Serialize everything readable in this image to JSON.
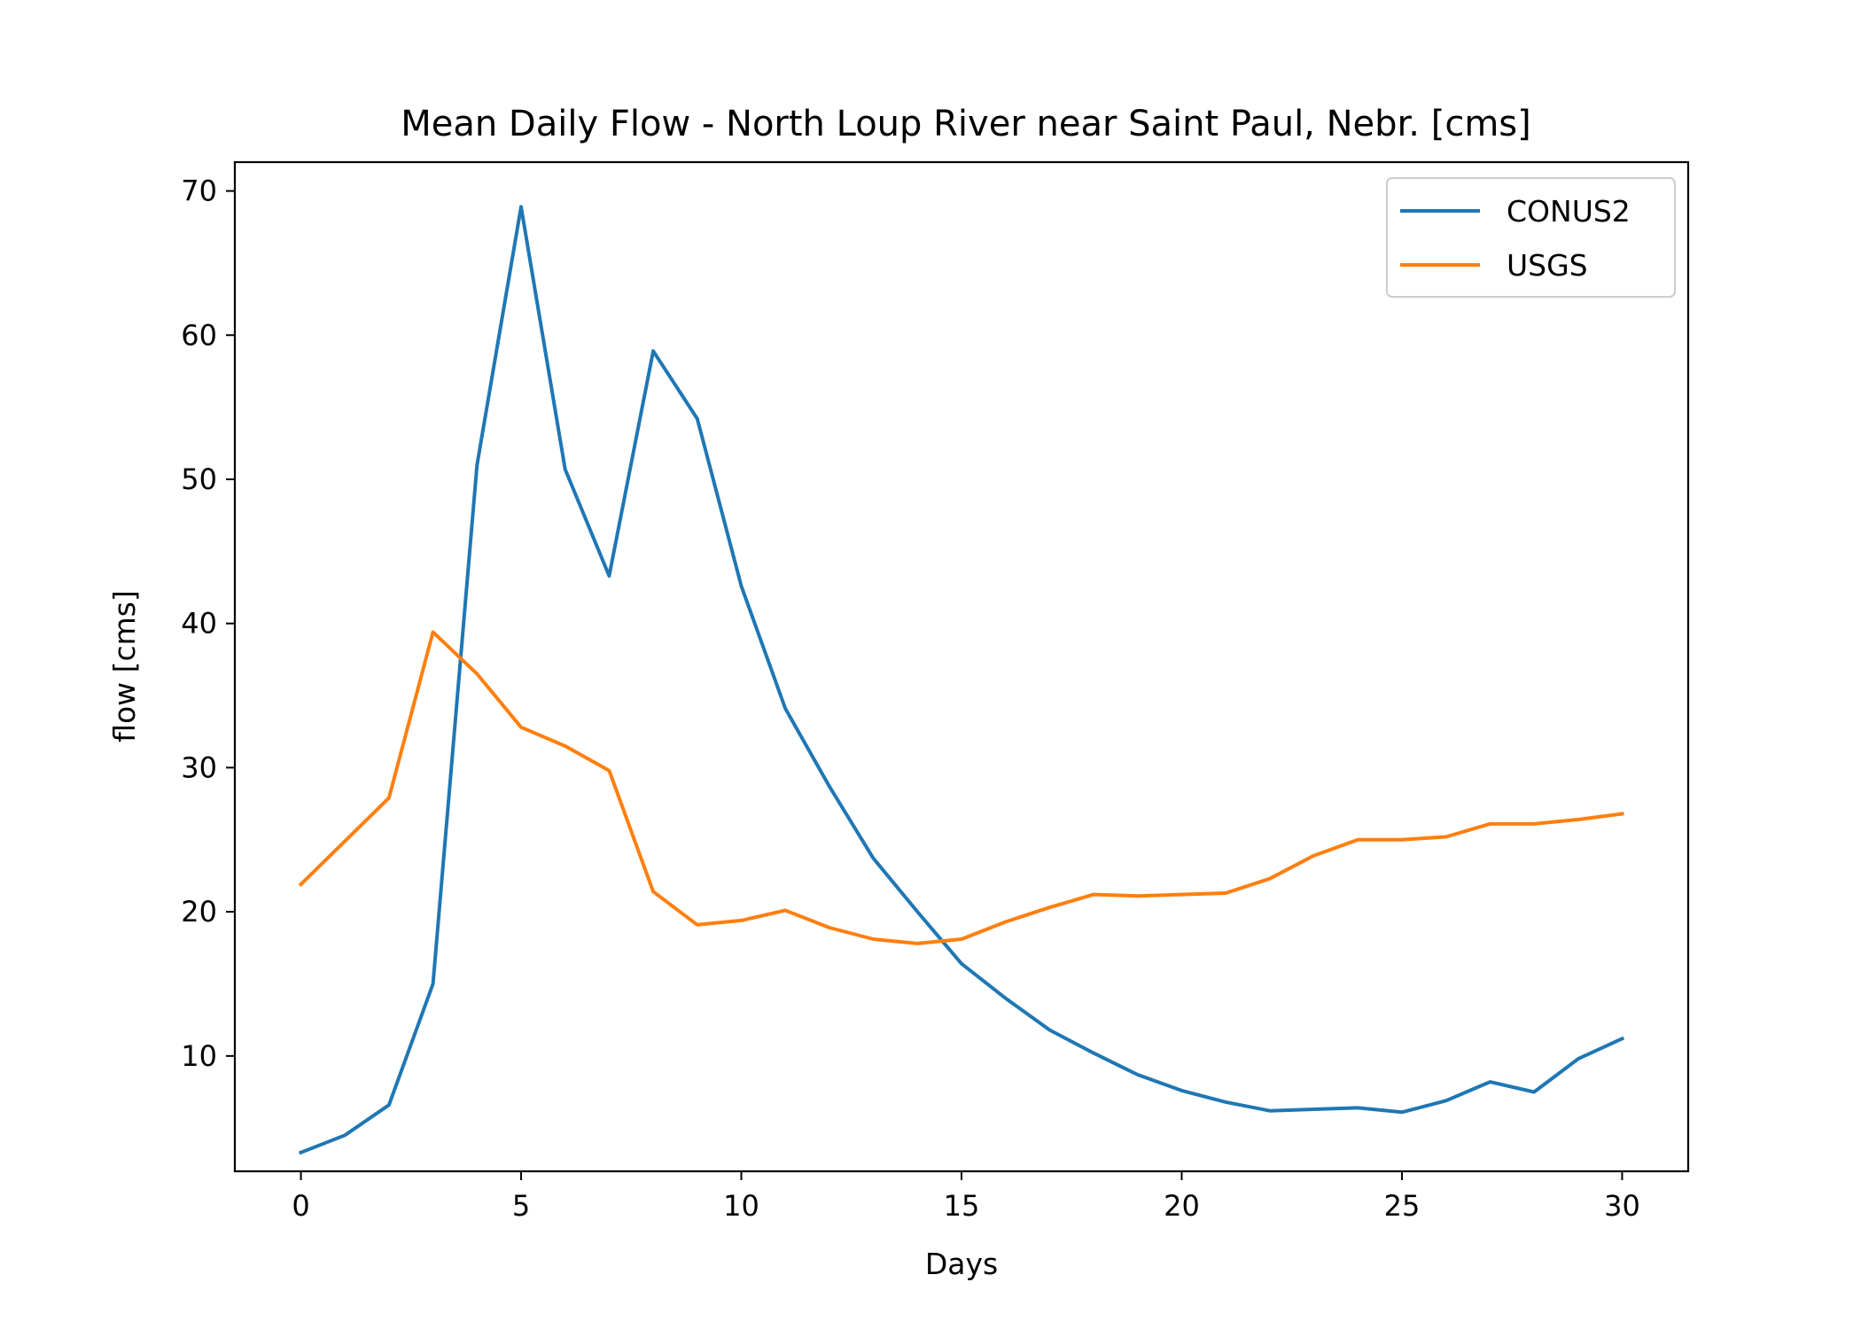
{
  "chart_data": {
    "type": "line",
    "title": "Mean Daily Flow - North Loup River near Saint Paul, Nebr. [cms]",
    "xlabel": "Days",
    "ylabel": "flow [cms]",
    "xlim": [
      -1.5,
      31.5
    ],
    "ylim": [
      2,
      72
    ],
    "xticks": [
      0,
      5,
      10,
      15,
      20,
      25,
      30
    ],
    "yticks": [
      10,
      20,
      30,
      40,
      50,
      60,
      70
    ],
    "grid": false,
    "legend_position": "top-right",
    "x": [
      0,
      1,
      2,
      3,
      4,
      5,
      6,
      7,
      8,
      9,
      10,
      11,
      12,
      13,
      14,
      15,
      16,
      17,
      18,
      19,
      20,
      21,
      22,
      23,
      24,
      25,
      26,
      27,
      28,
      29,
      30
    ],
    "series": [
      {
        "name": "CONUS2",
        "color": "#1f77b4",
        "values": [
          3.3,
          4.5,
          6.6,
          15.0,
          51.0,
          68.9,
          50.7,
          43.3,
          58.9,
          54.2,
          42.6,
          34.1,
          28.7,
          23.7,
          20.0,
          16.4,
          14.0,
          11.8,
          10.2,
          8.7,
          7.6,
          6.8,
          6.2,
          6.3,
          6.4,
          6.1,
          6.9,
          8.2,
          7.5,
          9.8,
          11.2
        ]
      },
      {
        "name": "USGS",
        "color": "#ff7f0e",
        "values": [
          21.9,
          24.9,
          27.9,
          39.4,
          36.5,
          32.8,
          31.5,
          29.8,
          21.4,
          19.1,
          19.4,
          20.1,
          18.9,
          18.1,
          17.8,
          18.1,
          19.3,
          20.3,
          21.2,
          21.1,
          21.2,
          21.3,
          22.3,
          23.9,
          25.0,
          25.0,
          25.2,
          26.1,
          26.1,
          26.4,
          26.8
        ]
      }
    ]
  }
}
